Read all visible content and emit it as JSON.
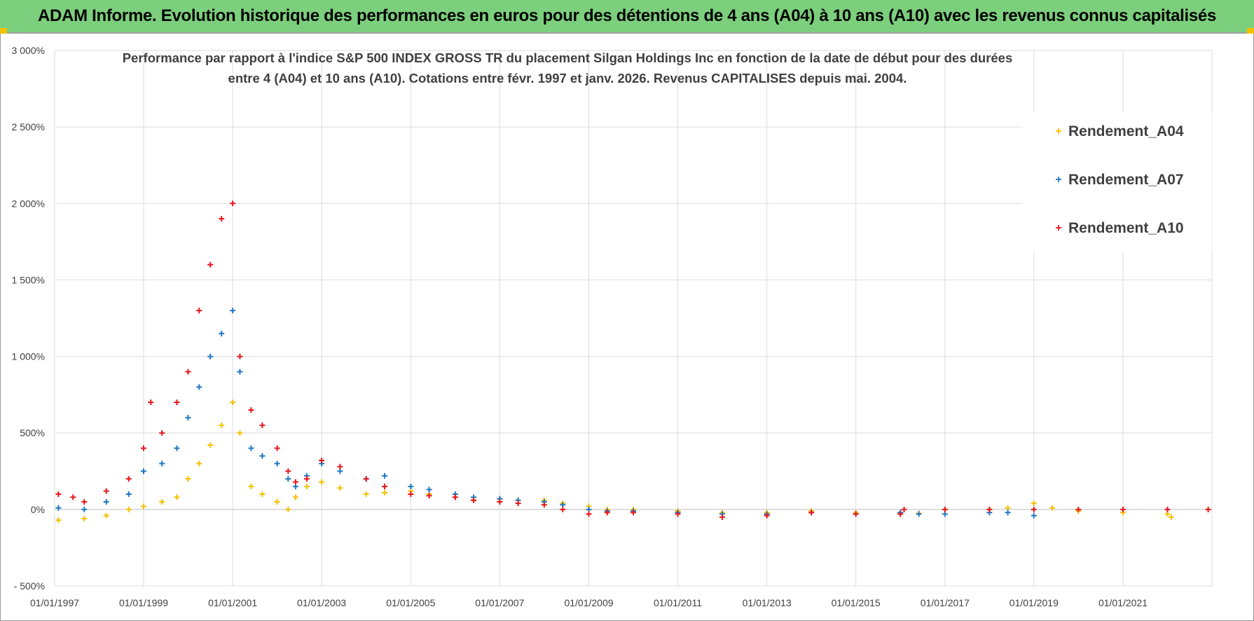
{
  "header": {
    "title": "ADAM Informe. Evolution historique des performances en euros pour des détentions de 4 ans (A04) à 10 ans (A10) avec les revenus connus capitalisés"
  },
  "chart_data": {
    "type": "scatter",
    "title_lines": [
      "Performance par rapport à l'indice S&P 500 INDEX GROSS TR  du placement Silgan Holdings Inc en fonction de la date de début pour des durées",
      "entre 4 (A04) et 10 ans (A10). Cotations entre févr. 1997 et janv. 2026. Revenus CAPITALISES depuis mai. 2004."
    ],
    "xlabel": "",
    "ylabel": "",
    "x_range": [
      "1997-01-01",
      "2023-01-01"
    ],
    "ylim": [
      -500,
      3000
    ],
    "y_ticks": [
      -500,
      0,
      500,
      1000,
      1500,
      2000,
      2500,
      3000
    ],
    "y_tick_labels": [
      "- 500%",
      "0%",
      "500%",
      "1 000%",
      "1 500%",
      "2 000%",
      "2 500%",
      "3 000%"
    ],
    "x_ticks": [
      "1997-01-01",
      "1999-01-01",
      "2001-01-01",
      "2003-01-01",
      "2005-01-01",
      "2007-01-01",
      "2009-01-01",
      "2011-01-01",
      "2013-01-01",
      "2015-01-01",
      "2017-01-01",
      "2019-01-01",
      "2021-01-01"
    ],
    "x_tick_labels": [
      "01/01/1997",
      "01/01/1999",
      "01/01/2001",
      "01/01/2003",
      "01/01/2005",
      "01/01/2007",
      "01/01/2009",
      "01/01/2011",
      "01/01/2013",
      "01/01/2015",
      "01/01/2017",
      "01/01/2019",
      "01/01/2021"
    ],
    "grid": true,
    "legend": "top-right",
    "marker": "+",
    "series": [
      {
        "name": "Rendement_A04",
        "color": "#f5c000",
        "x": [
          "1997-02-01",
          "1997-09-01",
          "1998-03-01",
          "1998-09-01",
          "1999-01-01",
          "1999-06-01",
          "1999-10-01",
          "2000-01-01",
          "2000-04-01",
          "2000-07-01",
          "2000-10-01",
          "2001-01-01",
          "2001-03-01",
          "2001-06-01",
          "2001-09-01",
          "2002-01-01",
          "2002-04-01",
          "2002-06-01",
          "2002-09-01",
          "2003-01-01",
          "2003-06-01",
          "2004-01-01",
          "2004-06-01",
          "2005-01-01",
          "2005-06-01",
          "2006-01-01",
          "2006-06-01",
          "2007-01-01",
          "2007-06-01",
          "2008-01-01",
          "2008-06-01",
          "2009-01-01",
          "2009-06-01",
          "2010-01-01",
          "2011-01-01",
          "2012-01-01",
          "2013-01-01",
          "2014-01-01",
          "2015-01-01",
          "2016-01-01",
          "2016-06-01",
          "2017-01-01",
          "2018-01-01",
          "2018-06-01",
          "2019-01-01",
          "2019-06-01",
          "2020-01-01",
          "2021-01-01",
          "2022-01-01",
          "2022-02-01"
        ],
        "values": [
          -70,
          -60,
          -40,
          0,
          20,
          50,
          80,
          200,
          300,
          420,
          550,
          700,
          500,
          150,
          100,
          50,
          0,
          80,
          150,
          180,
          140,
          100,
          110,
          120,
          100,
          80,
          60,
          70,
          60,
          60,
          40,
          20,
          0,
          0,
          -10,
          -20,
          -20,
          -10,
          -20,
          -30,
          -25,
          0,
          0,
          10,
          40,
          10,
          -10,
          -20,
          -30,
          -50
        ]
      },
      {
        "name": "Rendement_A07",
        "color": "#1f77c4",
        "x": [
          "1997-02-01",
          "1997-09-01",
          "1998-03-01",
          "1998-09-01",
          "1999-01-01",
          "1999-06-01",
          "1999-10-01",
          "2000-01-01",
          "2000-04-01",
          "2000-07-01",
          "2000-10-01",
          "2001-01-01",
          "2001-03-01",
          "2001-06-01",
          "2001-09-01",
          "2002-01-01",
          "2002-04-01",
          "2002-06-01",
          "2002-09-01",
          "2003-01-01",
          "2003-06-01",
          "2004-01-01",
          "2004-06-01",
          "2005-01-01",
          "2005-06-01",
          "2006-01-01",
          "2006-06-01",
          "2007-01-01",
          "2007-06-01",
          "2008-01-01",
          "2008-06-01",
          "2009-01-01",
          "2009-06-01",
          "2010-01-01",
          "2011-01-01",
          "2012-01-01",
          "2013-01-01",
          "2014-01-01",
          "2015-01-01",
          "2016-01-01",
          "2016-06-01",
          "2017-01-01",
          "2018-01-01",
          "2018-06-01",
          "2019-01-01"
        ],
        "values": [
          10,
          0,
          50,
          100,
          250,
          300,
          400,
          600,
          800,
          1000,
          1150,
          1300,
          900,
          400,
          350,
          300,
          200,
          150,
          220,
          300,
          250,
          200,
          220,
          150,
          130,
          100,
          80,
          70,
          60,
          50,
          30,
          0,
          -10,
          -10,
          -20,
          -30,
          -30,
          -20,
          -30,
          -20,
          -30,
          -30,
          -20,
          -20,
          -40
        ]
      },
      {
        "name": "Rendement_A10",
        "color": "#e8141a",
        "x": [
          "1997-02-01",
          "1997-06-01",
          "1997-09-01",
          "1998-03-01",
          "1998-09-01",
          "1999-01-01",
          "1999-03-01",
          "1999-06-01",
          "1999-10-01",
          "2000-01-01",
          "2000-04-01",
          "2000-07-01",
          "2000-10-01",
          "2001-01-01",
          "2001-03-01",
          "2001-06-01",
          "2001-09-01",
          "2002-01-01",
          "2002-04-01",
          "2002-06-01",
          "2002-09-01",
          "2003-01-01",
          "2003-06-01",
          "2004-01-01",
          "2004-06-01",
          "2005-01-01",
          "2005-06-01",
          "2006-01-01",
          "2006-06-01",
          "2007-01-01",
          "2007-06-01",
          "2008-01-01",
          "2008-06-01",
          "2009-01-01",
          "2009-06-01",
          "2010-01-01",
          "2011-01-01",
          "2012-01-01",
          "2013-01-01",
          "2014-01-01",
          "2015-01-01",
          "2016-01-01",
          "2016-02-01",
          "2017-01-01",
          "2018-01-01",
          "2019-01-01",
          "2020-01-01",
          "2021-01-01",
          "2022-01-01",
          "2022-12-01"
        ],
        "values": [
          100,
          80,
          50,
          120,
          200,
          400,
          700,
          500,
          700,
          900,
          1300,
          1600,
          1900,
          2000,
          1000,
          650,
          550,
          400,
          250,
          180,
          200,
          320,
          280,
          200,
          150,
          100,
          90,
          80,
          60,
          50,
          40,
          30,
          0,
          -30,
          -20,
          -20,
          -30,
          -50,
          -40,
          -20,
          -30,
          -30,
          0,
          0,
          0,
          0,
          0,
          0,
          0,
          0
        ]
      }
    ]
  }
}
